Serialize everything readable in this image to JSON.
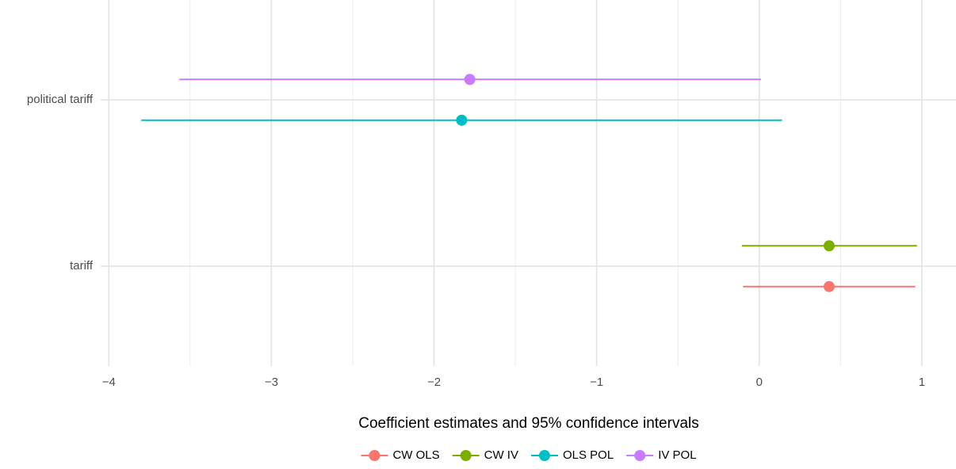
{
  "chart_data": {
    "type": "coefplot",
    "x_label": "Coefficient estimates and 95% confidence intervals",
    "categories": [
      "tariff",
      "political tariff"
    ],
    "series": [
      {
        "name": "CW OLS",
        "color": "#F8766D",
        "values": [
          0.43,
          null
        ],
        "lower": [
          -0.1,
          null
        ],
        "upper": [
          0.96,
          null
        ]
      },
      {
        "name": "CW IV",
        "color": "#7CAE00",
        "values": [
          0.43,
          null
        ],
        "lower": [
          -0.107,
          null
        ],
        "upper": [
          0.97,
          null
        ]
      },
      {
        "name": "OLS POL",
        "color": "#00BFC4",
        "values": [
          null,
          -1.83
        ],
        "lower": [
          null,
          -3.8
        ],
        "upper": [
          null,
          0.14
        ]
      },
      {
        "name": "IV POL",
        "color": "#C77CFF",
        "values": [
          null,
          -1.78
        ],
        "lower": [
          null,
          -3.566
        ],
        "upper": [
          null,
          0.01
        ]
      }
    ],
    "xlim": [
      -4.05,
      1.21
    ],
    "xticks": [
      {
        "value": -4,
        "label": "−4"
      },
      {
        "value": -3,
        "label": "−3"
      },
      {
        "value": -2,
        "label": "−2"
      },
      {
        "value": -1,
        "label": "−1"
      },
      0,
      1
    ],
    "x_minor_ticks": [
      -3.5,
      -2.5,
      -1.5,
      -0.5,
      0.5
    ],
    "grid": true,
    "legend": "bottom"
  }
}
